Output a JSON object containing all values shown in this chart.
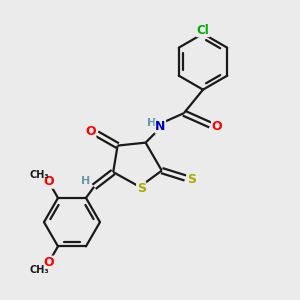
{
  "background_color": "#ebebeb",
  "bond_color": "#1a1a1a",
  "atom_colors": {
    "O": "#ff0000",
    "N": "#0000cc",
    "S": "#aaaa00",
    "Cl": "#00aa00",
    "H": "#6699aa",
    "C": "#1a1a1a"
  },
  "figsize": [
    3.0,
    3.0
  ],
  "dpi": 100
}
